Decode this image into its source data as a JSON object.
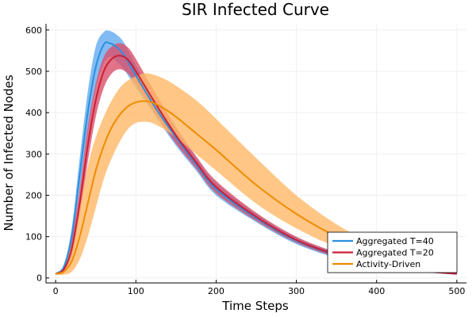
{
  "chart_data": {
    "type": "line",
    "title": "SIR Infected Curve",
    "xlabel": "Time Steps",
    "ylabel": "Number of Infected Nodes",
    "xlim": [
      -12,
      512
    ],
    "ylim": [
      -12,
      615
    ],
    "xticks": [
      0,
      100,
      200,
      300,
      400,
      500
    ],
    "yticks": [
      0,
      100,
      200,
      300,
      400,
      500,
      600
    ],
    "grid": true,
    "legend_position": "bottom-right",
    "series": [
      {
        "name": "Aggregated T=40",
        "color": "#2b8fdd",
        "band_color": "#63aaf0",
        "x": [
          0,
          10,
          20,
          30,
          40,
          50,
          60,
          67,
          75,
          85,
          100,
          125,
          150,
          175,
          200,
          250,
          300,
          350,
          400,
          450,
          500
        ],
        "mean": [
          10,
          25,
          100,
          250,
          400,
          510,
          565,
          568,
          560,
          540,
          490,
          410,
          340,
          275,
          215,
          145,
          90,
          55,
          30,
          18,
          10
        ],
        "low": [
          8,
          18,
          80,
          210,
          350,
          460,
          520,
          535,
          525,
          505,
          460,
          390,
          320,
          260,
          200,
          135,
          82,
          48,
          26,
          15,
          8
        ],
        "high": [
          12,
          32,
          120,
          290,
          450,
          560,
          595,
          598,
          590,
          570,
          515,
          430,
          360,
          290,
          230,
          155,
          98,
          62,
          35,
          22,
          13
        ]
      },
      {
        "name": "Aggregated T=20",
        "color": "#cc1f36",
        "band_color": "#d9506a",
        "x": [
          0,
          10,
          20,
          30,
          40,
          50,
          60,
          70,
          80,
          90,
          100,
          125,
          150,
          175,
          200,
          250,
          300,
          350,
          400,
          450,
          500
        ],
        "mean": [
          10,
          20,
          70,
          180,
          320,
          430,
          500,
          530,
          538,
          528,
          500,
          420,
          345,
          280,
          220,
          148,
          92,
          56,
          30,
          18,
          10
        ],
        "low": [
          8,
          15,
          50,
          150,
          280,
          390,
          460,
          495,
          505,
          495,
          470,
          395,
          325,
          265,
          205,
          138,
          85,
          50,
          26,
          15,
          8
        ],
        "high": [
          12,
          28,
          95,
          215,
          365,
          470,
          535,
          560,
          568,
          558,
          530,
          445,
          365,
          295,
          235,
          158,
          100,
          62,
          35,
          22,
          13
        ]
      },
      {
        "name": "Activity-Driven",
        "color": "#f08c00",
        "band_color": "#ffb866",
        "x": [
          0,
          10,
          20,
          30,
          40,
          50,
          60,
          70,
          80,
          90,
          100,
          110,
          120,
          135,
          150,
          175,
          200,
          250,
          300,
          350,
          400,
          450,
          500
        ],
        "mean": [
          10,
          15,
          40,
          100,
          180,
          260,
          320,
          365,
          395,
          415,
          425,
          428,
          425,
          410,
          390,
          350,
          310,
          225,
          155,
          100,
          60,
          35,
          20
        ],
        "low": [
          8,
          8,
          15,
          45,
          100,
          170,
          240,
          290,
          330,
          360,
          375,
          378,
          375,
          360,
          340,
          300,
          260,
          180,
          120,
          75,
          45,
          25,
          14
        ],
        "high": [
          12,
          25,
          80,
          170,
          270,
          340,
          390,
          430,
          460,
          478,
          488,
          495,
          493,
          482,
          465,
          430,
          385,
          290,
          200,
          130,
          80,
          48,
          30
        ]
      }
    ]
  }
}
